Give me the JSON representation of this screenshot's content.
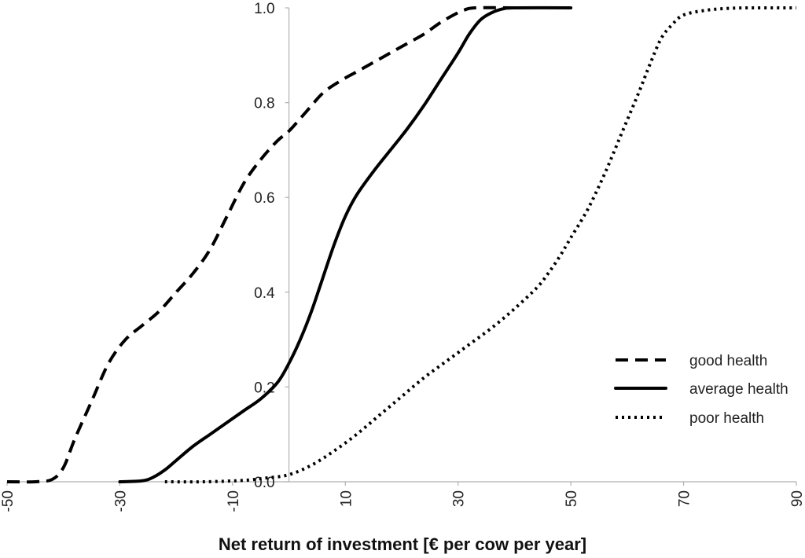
{
  "chart_data": {
    "type": "line",
    "title": "",
    "xlabel": "Net return of investment [€ per cow per year]",
    "ylabel": "",
    "xlim": [
      -50,
      90
    ],
    "ylim": [
      0,
      1
    ],
    "x_ticks": [
      "-50",
      "-30",
      "-10",
      "10",
      "30",
      "50",
      "70",
      "90"
    ],
    "y_ticks": [
      "0.0",
      "0.2",
      "0.4",
      "0.6",
      "0.8",
      "1.0"
    ],
    "y_axis_crosses_x_at": 0,
    "grid": false,
    "legend_position": "right",
    "series": [
      {
        "name": "good health",
        "line_style": "dashed",
        "color": "#000000",
        "points": [
          [
            -50,
            0
          ],
          [
            -45,
            0
          ],
          [
            -42,
            0.005
          ],
          [
            -40,
            0.03
          ],
          [
            -38,
            0.09
          ],
          [
            -35,
            0.17
          ],
          [
            -32,
            0.25
          ],
          [
            -29,
            0.3
          ],
          [
            -26,
            0.33
          ],
          [
            -23,
            0.36
          ],
          [
            -20,
            0.4
          ],
          [
            -17,
            0.44
          ],
          [
            -14,
            0.49
          ],
          [
            -11,
            0.56
          ],
          [
            -8,
            0.63
          ],
          [
            -5,
            0.68
          ],
          [
            -2,
            0.72
          ],
          [
            0,
            0.74
          ],
          [
            3,
            0.78
          ],
          [
            6,
            0.82
          ],
          [
            9,
            0.845
          ],
          [
            12,
            0.865
          ],
          [
            15,
            0.885
          ],
          [
            18,
            0.905
          ],
          [
            21,
            0.925
          ],
          [
            24,
            0.945
          ],
          [
            27,
            0.97
          ],
          [
            30,
            0.99
          ],
          [
            31,
            0.995
          ],
          [
            33,
            1.0
          ],
          [
            40,
            1.0
          ]
        ]
      },
      {
        "name": "average health",
        "line_style": "solid",
        "color": "#000000",
        "points": [
          [
            -30,
            0
          ],
          [
            -26,
            0.002
          ],
          [
            -24,
            0.01
          ],
          [
            -22,
            0.025
          ],
          [
            -20,
            0.045
          ],
          [
            -17,
            0.075
          ],
          [
            -14,
            0.1
          ],
          [
            -11,
            0.125
          ],
          [
            -8,
            0.15
          ],
          [
            -5,
            0.175
          ],
          [
            -2,
            0.21
          ],
          [
            0,
            0.25
          ],
          [
            2,
            0.3
          ],
          [
            4,
            0.36
          ],
          [
            6,
            0.43
          ],
          [
            8,
            0.5
          ],
          [
            10,
            0.56
          ],
          [
            12,
            0.605
          ],
          [
            15,
            0.655
          ],
          [
            18,
            0.7
          ],
          [
            21,
            0.745
          ],
          [
            24,
            0.795
          ],
          [
            27,
            0.85
          ],
          [
            30,
            0.905
          ],
          [
            32,
            0.945
          ],
          [
            34,
            0.975
          ],
          [
            36,
            0.99
          ],
          [
            38,
            0.998
          ],
          [
            40,
            1.0
          ],
          [
            50,
            1.0
          ]
        ]
      },
      {
        "name": "poor health",
        "line_style": "dotted",
        "color": "#000000",
        "points": [
          [
            -22,
            0
          ],
          [
            -15,
            0
          ],
          [
            -8,
            0.003
          ],
          [
            -4,
            0.008
          ],
          [
            0,
            0.015
          ],
          [
            4,
            0.035
          ],
          [
            8,
            0.065
          ],
          [
            12,
            0.1
          ],
          [
            16,
            0.14
          ],
          [
            20,
            0.18
          ],
          [
            24,
            0.22
          ],
          [
            28,
            0.255
          ],
          [
            32,
            0.29
          ],
          [
            36,
            0.325
          ],
          [
            40,
            0.365
          ],
          [
            44,
            0.41
          ],
          [
            46,
            0.44
          ],
          [
            48,
            0.475
          ],
          [
            50,
            0.515
          ],
          [
            53,
            0.575
          ],
          [
            56,
            0.65
          ],
          [
            59,
            0.735
          ],
          [
            62,
            0.82
          ],
          [
            64,
            0.88
          ],
          [
            66,
            0.935
          ],
          [
            68,
            0.965
          ],
          [
            70,
            0.985
          ],
          [
            74,
            0.995
          ],
          [
            78,
            0.999
          ],
          [
            82,
            1.0
          ],
          [
            90,
            1.0
          ]
        ]
      }
    ]
  }
}
